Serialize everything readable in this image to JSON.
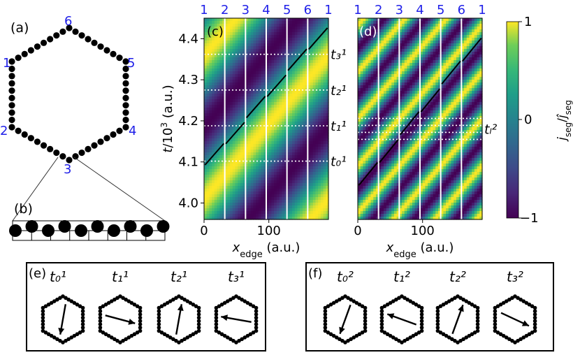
{
  "panels": {
    "a": "(a)",
    "b": "(b)",
    "c": "(c)",
    "d": "(d)",
    "e": "(e)",
    "f": "(f)"
  },
  "hexagon_vertex_labels": [
    "1",
    "2",
    "3",
    "4",
    "5",
    "6"
  ],
  "top_vertex_ticks": [
    "1",
    "2",
    "3",
    "4",
    "5",
    "6",
    "1"
  ],
  "chart_data": [
    {
      "type": "heatmap",
      "id": "c",
      "ylabel": "t/10³ (a.u.)",
      "xlabel": "x_edge (a.u.)",
      "yticks": [
        "4.0",
        "4.1",
        "4.2",
        "4.3",
        "4.4"
      ],
      "xticks": [
        "0",
        "100"
      ],
      "xlim": [
        0,
        192
      ],
      "ylim": [
        3.96,
        4.45
      ],
      "edge_boundaries_x": [
        32,
        64,
        96,
        128,
        160
      ],
      "dotted_times": [
        4.102,
        4.188,
        4.275,
        4.362
      ],
      "time_labels": [
        "t₀¹",
        "t₁¹",
        "t₂¹",
        "t₃¹"
      ],
      "line": {
        "x": [
          0,
          192
        ],
        "t": [
          4.09,
          4.435
        ]
      }
    },
    {
      "type": "heatmap",
      "id": "d",
      "xlabel": "x_edge (a.u.)",
      "xticks": [
        "0",
        "100"
      ],
      "xlim": [
        0,
        192
      ],
      "ylim": [
        3.96,
        4.45
      ],
      "edge_boundaries_x": [
        32,
        64,
        96,
        128,
        160
      ],
      "dotted_times": [
        4.155,
        4.172,
        4.189,
        4.206
      ],
      "time_label": "tₗ²",
      "line": {
        "x": [
          0,
          192
        ],
        "t": [
          4.04,
          4.41
        ]
      }
    },
    {
      "type": "colorbar",
      "label": "j_seg/ĵ_seg",
      "ticks": [
        "1",
        "0",
        "−1"
      ],
      "range": [
        -1,
        1
      ]
    }
  ],
  "snapshots_e": {
    "labels": [
      "t₀¹",
      "t₁¹",
      "t₂¹",
      "t₃¹"
    ],
    "arrow_angles_deg": [
      -100,
      -15,
      80,
      170
    ]
  },
  "snapshots_f": {
    "labels": [
      "t₀²",
      "t₁²",
      "t₂²",
      "t₃²"
    ],
    "arrow_angles_deg": [
      -110,
      160,
      70,
      -25
    ]
  }
}
